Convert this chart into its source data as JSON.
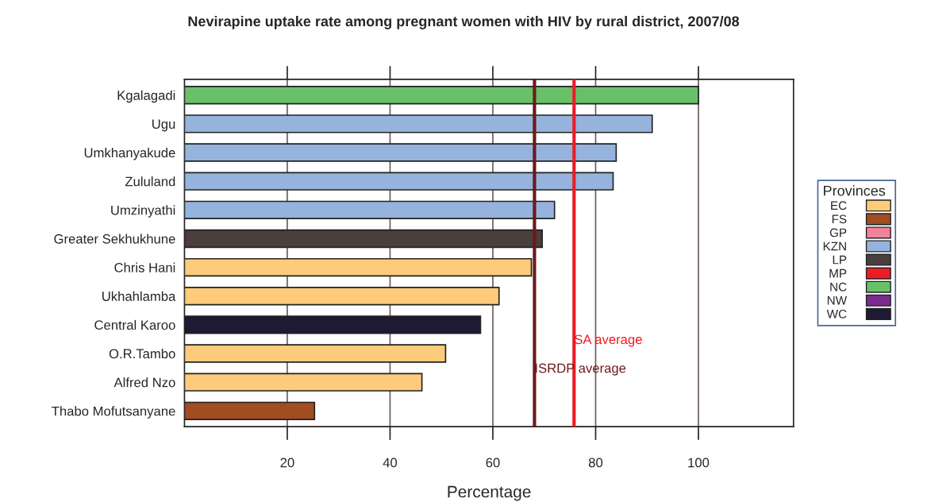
{
  "chart_data": {
    "type": "bar",
    "orientation": "horizontal",
    "stacked": true,
    "title": "Nevirapine uptake rate among pregnant women with HIV by rural district, 2007/08",
    "xlabel": "Percentage",
    "legend_title": "Provinces",
    "legend": "right",
    "grid": "x",
    "categories": [
      "Kgalagadi",
      "Ugu",
      "Umkhanyakude",
      "Zululand",
      "Umzinyathi",
      "Greater Sekhukhune",
      "Chris Hani",
      "Ukhahlamba",
      "Central Karoo",
      "O.R.Tambo",
      "Alfred Nzo",
      "Thabo Mofutsanyane"
    ],
    "xlim": [
      0,
      118.5
    ],
    "xticks": [
      20,
      40,
      60,
      80,
      100
    ],
    "series": [
      {
        "name": "EC",
        "color": "#fdcb7a",
        "values": [
          null,
          null,
          null,
          null,
          null,
          null,
          67.5,
          61.2,
          null,
          50.8,
          46.2,
          null
        ]
      },
      {
        "name": "FS",
        "color": "#a04d22",
        "values": [
          null,
          null,
          null,
          null,
          null,
          null,
          null,
          null,
          null,
          null,
          null,
          25.3
        ]
      },
      {
        "name": "GP",
        "color": "#f08399",
        "values": [
          null,
          null,
          null,
          null,
          null,
          null,
          null,
          null,
          null,
          null,
          null,
          null
        ]
      },
      {
        "name": "KZN",
        "color": "#95b3dc",
        "values": [
          null,
          91,
          84,
          83.4,
          72,
          null,
          null,
          null,
          null,
          null,
          null,
          null
        ]
      },
      {
        "name": "LP",
        "color": "#4a3f3d",
        "values": [
          null,
          null,
          null,
          null,
          null,
          69.6,
          null,
          null,
          null,
          null,
          null,
          null
        ]
      },
      {
        "name": "MP",
        "color": "#ed1c24",
        "values": [
          null,
          null,
          null,
          null,
          null,
          null,
          null,
          null,
          null,
          null,
          null,
          null
        ]
      },
      {
        "name": "NC",
        "color": "#6abf69",
        "values": [
          100,
          null,
          null,
          null,
          null,
          null,
          null,
          null,
          null,
          null,
          null,
          null
        ]
      },
      {
        "name": "NW",
        "color": "#7b2a8e",
        "values": [
          null,
          null,
          null,
          null,
          null,
          null,
          null,
          null,
          null,
          null,
          null,
          null
        ]
      },
      {
        "name": "WC",
        "color": "#1e1a35",
        "values": [
          null,
          null,
          null,
          null,
          null,
          null,
          null,
          null,
          57.6,
          null,
          null,
          null
        ]
      }
    ],
    "ref_lines": [
      {
        "axis": "x",
        "value": 68.1,
        "label": "ISRDP average",
        "color": "#6b1a1a"
      },
      {
        "axis": "x",
        "value": 75.8,
        "label": "SA average",
        "color": "#ed1c24"
      }
    ]
  }
}
